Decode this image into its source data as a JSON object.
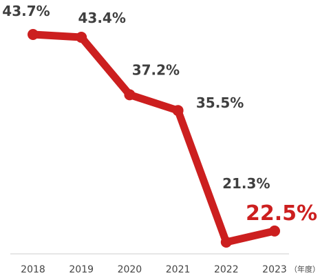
{
  "chart_data": {
    "type": "line",
    "categories": [
      "2018",
      "2019",
      "2020",
      "2021",
      "2022",
      "2023"
    ],
    "series": [
      {
        "values": [
          43.7,
          43.4,
          37.2,
          35.5,
          21.3,
          22.5
        ]
      }
    ],
    "data_labels": [
      "43.7%",
      "43.4%",
      "37.2%",
      "35.5%",
      "21.3%",
      "22.5%"
    ],
    "highlight_index": 5,
    "x_unit_label": "（年度）",
    "title": "",
    "xlabel": "",
    "ylabel": "",
    "grid": false,
    "colors": {
      "line": "#cc1f1f",
      "highlight_label": "#cc1f1f",
      "label": "#3f3f3f",
      "axis": "#cccccc",
      "tick": "#444444"
    }
  }
}
